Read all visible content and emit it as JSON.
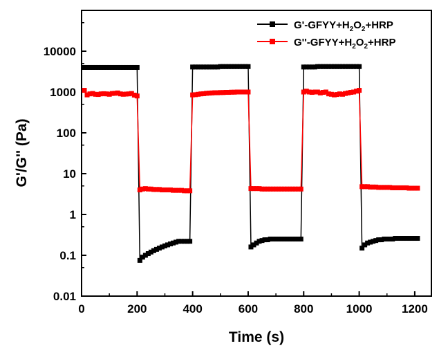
{
  "chart_data": {
    "type": "line",
    "title": "",
    "xlabel": "Time (s)",
    "ylabel": "G'/G'' (Pa)",
    "xlim": [
      0,
      1260
    ],
    "ylim": [
      0.01,
      100000
    ],
    "yscale": "log",
    "xticks": [
      0,
      200,
      400,
      600,
      800,
      1000,
      1200
    ],
    "yticks": [
      0.01,
      0.1,
      1,
      10,
      100,
      1000,
      10000
    ],
    "xtick_labels": [
      "0",
      "200",
      "400",
      "600",
      "800",
      "1000",
      "1200"
    ],
    "ytick_labels": [
      "0.01",
      "0.1",
      "1",
      "10",
      "100",
      "1000",
      "10000"
    ],
    "grid": false,
    "legend_position": "top-right",
    "series": [
      {
        "name": "G'-GFYY+H2O2+HRP",
        "legend_parts": [
          "G'-GFYY+H",
          "2",
          "O",
          "2",
          "+HRP"
        ],
        "color": "#000000",
        "marker": "square",
        "x": [
          10,
          20,
          30,
          40,
          50,
          60,
          70,
          80,
          90,
          100,
          110,
          120,
          130,
          140,
          150,
          160,
          170,
          180,
          190,
          200,
          210,
          220,
          230,
          240,
          250,
          260,
          270,
          280,
          290,
          300,
          310,
          320,
          330,
          340,
          350,
          360,
          370,
          380,
          390,
          400,
          410,
          420,
          430,
          440,
          450,
          460,
          470,
          480,
          490,
          500,
          510,
          520,
          530,
          540,
          550,
          560,
          570,
          580,
          590,
          600,
          610,
          620,
          630,
          640,
          650,
          660,
          670,
          680,
          690,
          700,
          710,
          720,
          730,
          740,
          750,
          760,
          770,
          780,
          790,
          800,
          810,
          820,
          830,
          840,
          850,
          860,
          870,
          880,
          890,
          900,
          910,
          920,
          930,
          940,
          950,
          960,
          970,
          980,
          990,
          1000,
          1010,
          1020,
          1030,
          1040,
          1050,
          1060,
          1070,
          1080,
          1090,
          1100,
          1110,
          1120,
          1130,
          1140,
          1150,
          1160,
          1170,
          1180,
          1190,
          1200,
          1210
        ],
        "y": [
          4000,
          4000,
          4000,
          4000,
          4000,
          4000,
          4000,
          4000,
          4000,
          4000,
          4000,
          4000,
          4000,
          4000,
          4000,
          4000,
          4000,
          4000,
          4000,
          4000,
          0.075,
          0.09,
          0.1,
          0.11,
          0.12,
          0.13,
          0.14,
          0.15,
          0.16,
          0.17,
          0.18,
          0.19,
          0.2,
          0.21,
          0.22,
          0.22,
          0.22,
          0.22,
          0.22,
          4100,
          4100,
          4100,
          4100,
          4100,
          4100,
          4100,
          4100,
          4100,
          4100,
          4200,
          4200,
          4200,
          4200,
          4200,
          4200,
          4200,
          4200,
          4200,
          4200,
          4200,
          0.16,
          0.18,
          0.2,
          0.22,
          0.23,
          0.24,
          0.24,
          0.25,
          0.25,
          0.25,
          0.25,
          0.25,
          0.25,
          0.25,
          0.25,
          0.25,
          0.25,
          0.25,
          0.25,
          4100,
          4100,
          4100,
          4100,
          4100,
          4200,
          4200,
          4200,
          4200,
          4200,
          4200,
          4200,
          4200,
          4200,
          4200,
          4200,
          4200,
          4200,
          4200,
          4200,
          4200,
          0.15,
          0.18,
          0.2,
          0.21,
          0.22,
          0.23,
          0.24,
          0.24,
          0.25,
          0.25,
          0.25,
          0.25,
          0.26,
          0.26,
          0.26,
          0.26,
          0.26,
          0.26,
          0.26,
          0.26,
          0.26
        ]
      },
      {
        "name": "G''-GFYY+H2O2+HRP",
        "legend_parts": [
          "G''-GFYY+H",
          "2",
          "O",
          "2",
          "+HRP"
        ],
        "color": "#ff0000",
        "marker": "square",
        "x": [
          10,
          20,
          30,
          40,
          50,
          60,
          70,
          80,
          90,
          100,
          110,
          120,
          130,
          140,
          150,
          160,
          170,
          180,
          190,
          200,
          210,
          220,
          230,
          240,
          250,
          260,
          270,
          280,
          290,
          300,
          310,
          320,
          330,
          340,
          350,
          360,
          370,
          380,
          390,
          400,
          410,
          420,
          430,
          440,
          450,
          460,
          470,
          480,
          490,
          500,
          510,
          520,
          530,
          540,
          550,
          560,
          570,
          580,
          590,
          600,
          610,
          620,
          630,
          640,
          650,
          660,
          670,
          680,
          690,
          700,
          710,
          720,
          730,
          740,
          750,
          760,
          770,
          780,
          790,
          800,
          810,
          820,
          830,
          840,
          850,
          860,
          870,
          880,
          890,
          900,
          910,
          920,
          930,
          940,
          950,
          960,
          970,
          980,
          990,
          1000,
          1010,
          1020,
          1030,
          1040,
          1050,
          1060,
          1070,
          1080,
          1090,
          1100,
          1110,
          1120,
          1130,
          1140,
          1150,
          1160,
          1170,
          1180,
          1190,
          1200,
          1210
        ],
        "y": [
          1100,
          850,
          900,
          920,
          880,
          870,
          900,
          910,
          900,
          880,
          920,
          930,
          950,
          900,
          880,
          890,
          900,
          920,
          840,
          800,
          4.0,
          4.2,
          4.3,
          4.2,
          4.2,
          4.1,
          4.1,
          4.1,
          4.0,
          4.0,
          4.0,
          4.0,
          3.9,
          3.9,
          3.9,
          3.9,
          3.8,
          3.8,
          3.8,
          850,
          860,
          880,
          900,
          910,
          930,
          940,
          950,
          960,
          960,
          970,
          970,
          980,
          980,
          990,
          990,
          1000,
          1000,
          1000,
          1000,
          1000,
          4.3,
          4.3,
          4.3,
          4.3,
          4.2,
          4.2,
          4.2,
          4.2,
          4.2,
          4.2,
          4.2,
          4.2,
          4.2,
          4.2,
          4.2,
          4.2,
          4.2,
          4.2,
          4.2,
          1000,
          1050,
          1000,
          980,
          1000,
          1000,
          950,
          980,
          1000,
          900,
          880,
          850,
          870,
          900,
          880,
          920,
          950,
          980,
          1000,
          1050,
          1100,
          4.8,
          4.8,
          4.8,
          4.7,
          4.7,
          4.7,
          4.6,
          4.6,
          4.6,
          4.6,
          4.6,
          4.5,
          4.5,
          4.5,
          4.5,
          4.5,
          4.5,
          4.4,
          4.4,
          4.4,
          4.4
        ]
      }
    ]
  }
}
